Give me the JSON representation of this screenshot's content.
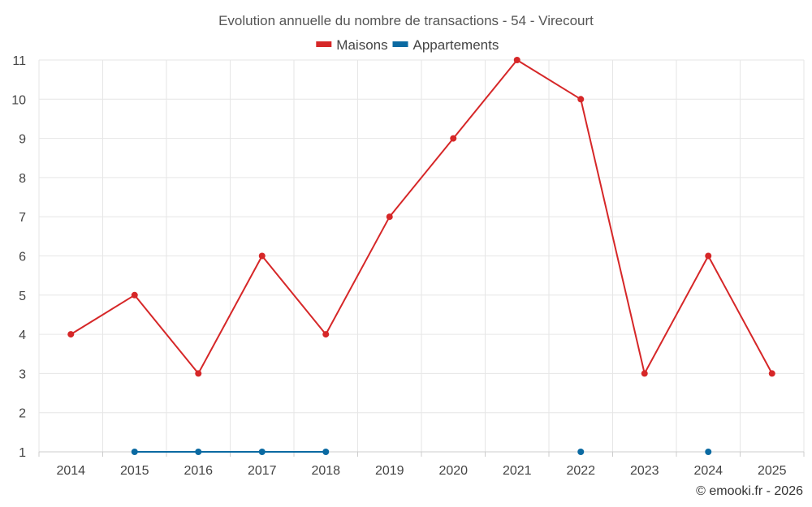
{
  "chart_data": {
    "type": "line",
    "title": "Evolution annuelle du nombre de transactions - 54 - Virecourt",
    "x": [
      "2014",
      "2015",
      "2016",
      "2017",
      "2018",
      "2019",
      "2020",
      "2021",
      "2022",
      "2023",
      "2024",
      "2025"
    ],
    "ylim": [
      1,
      11
    ],
    "yticks": [
      "1",
      "2",
      "3",
      "4",
      "5",
      "6",
      "7",
      "8",
      "9",
      "10",
      "11"
    ],
    "grid": true,
    "legend_position": "top-center",
    "series": [
      {
        "name": "Maisons",
        "color": "#d62728",
        "values": [
          4,
          5,
          3,
          6,
          4,
          7,
          9,
          11,
          10,
          3,
          6,
          3
        ]
      },
      {
        "name": "Appartements",
        "color": "#0b6aa2",
        "values": [
          null,
          1,
          1,
          1,
          1,
          null,
          null,
          null,
          1,
          null,
          1,
          null
        ]
      }
    ]
  },
  "credit": "© emooki.fr - 2026"
}
